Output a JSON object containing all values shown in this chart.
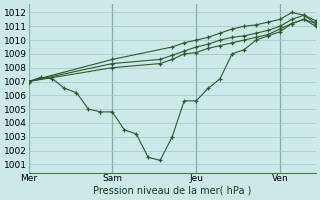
{
  "xlabel": "Pression niveau de la mer( hPa )",
  "background_color": "#cce8e8",
  "grid_color": "#9dc8c8",
  "line_color": "#2d5a2d",
  "vline_color": "#4a7a4a",
  "ylim": [
    1000.4,
    1012.6
  ],
  "yticks": [
    1001,
    1002,
    1003,
    1004,
    1005,
    1006,
    1007,
    1008,
    1009,
    1010,
    1011,
    1012
  ],
  "day_labels": [
    "Mer",
    "Sam",
    "Jeu",
    "Ven"
  ],
  "day_positions": [
    0,
    28,
    56,
    84
  ],
  "xlim": [
    0,
    96
  ],
  "series1_x": [
    0,
    4,
    8,
    12,
    16,
    20,
    24,
    28,
    32,
    36,
    40,
    44,
    48,
    52,
    56,
    60,
    64,
    68,
    72,
    76,
    80,
    84,
    88,
    92,
    96
  ],
  "series1_y": [
    1007.0,
    1007.3,
    1007.2,
    1006.5,
    1006.2,
    1005.0,
    1004.8,
    1004.8,
    1003.5,
    1003.2,
    1001.5,
    1001.3,
    1003.0,
    1005.6,
    1005.6,
    1006.5,
    1007.2,
    1009.0,
    1009.3,
    1010.0,
    1010.3,
    1010.6,
    1011.2,
    1011.5,
    1011.2
  ],
  "series2_x": [
    0,
    28,
    44,
    48,
    52,
    56,
    60,
    64,
    68,
    72,
    76,
    80,
    84,
    88,
    92,
    96
  ],
  "series2_y": [
    1007.0,
    1008.0,
    1008.3,
    1008.6,
    1009.0,
    1009.1,
    1009.4,
    1009.6,
    1009.8,
    1010.0,
    1010.2,
    1010.4,
    1010.8,
    1011.2,
    1011.5,
    1011.0
  ],
  "series3_x": [
    0,
    28,
    44,
    48,
    52,
    56,
    60,
    64,
    68,
    72,
    76,
    80,
    84,
    88,
    92,
    96
  ],
  "series3_y": [
    1007.0,
    1008.3,
    1008.6,
    1008.9,
    1009.2,
    1009.5,
    1009.7,
    1010.0,
    1010.2,
    1010.3,
    1010.5,
    1010.7,
    1011.0,
    1011.5,
    1011.8,
    1011.4
  ],
  "series4_x": [
    0,
    28,
    48,
    52,
    56,
    60,
    64,
    68,
    72,
    76,
    80,
    84,
    88,
    92,
    96
  ],
  "series4_y": [
    1007.0,
    1008.6,
    1009.5,
    1009.8,
    1010.0,
    1010.2,
    1010.5,
    1010.8,
    1011.0,
    1011.1,
    1011.3,
    1011.5,
    1012.0,
    1011.8,
    1011.2
  ]
}
